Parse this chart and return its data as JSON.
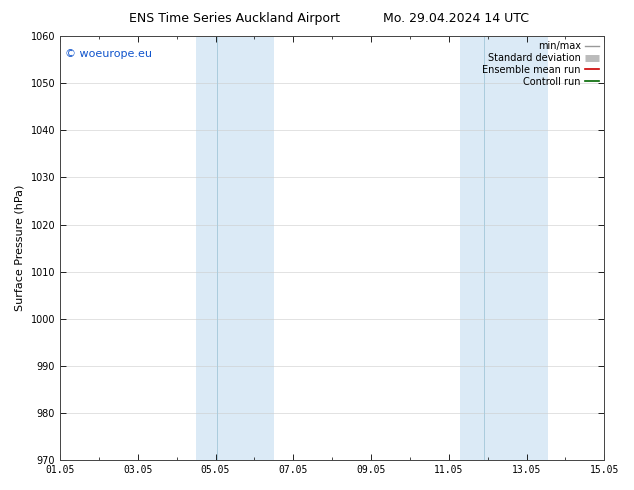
{
  "title_left": "ENS Time Series Auckland Airport",
  "title_right": "Mo. 29.04.2024 14 UTC",
  "ylabel": "Surface Pressure (hPa)",
  "ylim": [
    970,
    1060
  ],
  "yticks": [
    970,
    980,
    990,
    1000,
    1010,
    1020,
    1030,
    1040,
    1050,
    1060
  ],
  "xlim_num": [
    0,
    14
  ],
  "xtick_labels": [
    "01.05",
    "03.05",
    "05.05",
    "07.05",
    "09.05",
    "11.05",
    "13.05",
    "15.05"
  ],
  "xtick_positions": [
    0,
    2,
    4,
    6,
    8,
    10,
    12,
    14
  ],
  "shaded_bands": [
    {
      "xmin": 3.5,
      "xmax": 4.0,
      "color": "#daeaf5"
    },
    {
      "xmin": 4.0,
      "xmax": 5.5,
      "color": "#daeaf5"
    },
    {
      "xmin": 10.3,
      "xmax": 10.85,
      "color": "#daeaf5"
    },
    {
      "xmin": 10.85,
      "xmax": 12.5,
      "color": "#daeaf5"
    }
  ],
  "band1_xmin": 3.5,
  "band1_xmid": 4.05,
  "band1_xmax": 5.5,
  "band2_xmin": 10.3,
  "band2_xmid": 10.9,
  "band2_xmax": 12.55,
  "band_color": "#dbeaf6",
  "band_divider_color": "#aaccdd",
  "watermark": "© woeurope.eu",
  "watermark_color": "#1155cc",
  "legend_items": [
    {
      "label": "min/max",
      "color": "#999999",
      "lw": 1.0,
      "linestyle": "-"
    },
    {
      "label": "Standard deviation",
      "color": "#bbbbbb",
      "lw": 5,
      "linestyle": "-"
    },
    {
      "label": "Ensemble mean run",
      "color": "#cc0000",
      "lw": 1.2,
      "linestyle": "-"
    },
    {
      "label": "Controll run",
      "color": "#006600",
      "lw": 1.2,
      "linestyle": "-"
    }
  ],
  "bg_color": "#ffffff",
  "plot_bg_color": "#ffffff",
  "grid_color": "#cccccc",
  "title_fontsize": 9,
  "ylabel_fontsize": 8,
  "tick_fontsize": 7,
  "legend_fontsize": 7,
  "watermark_fontsize": 8
}
